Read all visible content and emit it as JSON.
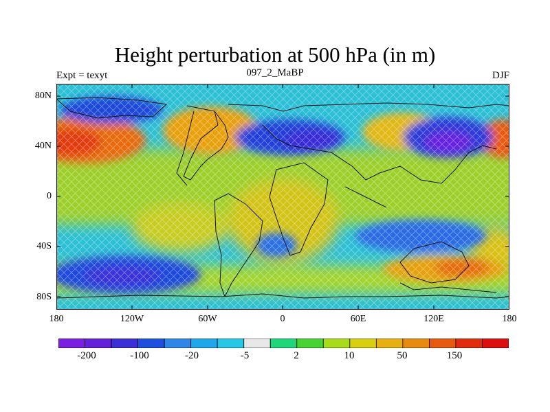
{
  "figure": {
    "title": "Height perturbation at 500 hPa (in m)",
    "subtitle_left": "Expt = texyt",
    "subtitle_center": "097_2_MaBP",
    "subtitle_right": "DJF"
  },
  "axes": {
    "y_ticks": [
      "80N",
      "40N",
      "0",
      "40S",
      "80S"
    ],
    "x_ticks": [
      "180",
      "120W",
      "60W",
      "0",
      "60E",
      "120E",
      "180"
    ]
  },
  "colorbar": {
    "colors": [
      "#7a1fe0",
      "#6420d8",
      "#3c2fd8",
      "#1e50e0",
      "#2f86e6",
      "#1ea7ea",
      "#27c7e6",
      "#e8e8e8",
      "#20d67a",
      "#46d230",
      "#a6dc1a",
      "#d8cf10",
      "#e6b010",
      "#e88a10",
      "#e65a10",
      "#e22a0c",
      "#dc0e0e"
    ],
    "labels": [
      "-200",
      "-100",
      "-20",
      "-5",
      "2",
      "10",
      "50",
      "150"
    ]
  }
}
